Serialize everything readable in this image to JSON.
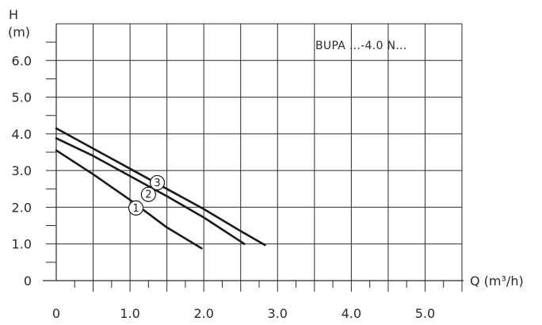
{
  "chart_data": {
    "type": "line",
    "annotation": "BUPA ...-4.0 N...",
    "y_label_top": "H",
    "y_label_unit": "(m)",
    "x_label": "Q (m³/h)",
    "xlim": [
      0,
      5.5
    ],
    "ylim": [
      0,
      7.0
    ],
    "x_ticks": [
      "0",
      "1.0",
      "2.0",
      "3.0",
      "4.0",
      "5.0"
    ],
    "x_tick_values": [
      0,
      1.0,
      2.0,
      3.0,
      4.0,
      5.0
    ],
    "y_ticks": [
      "0",
      "1.0",
      "2.0",
      "3.0",
      "4.0",
      "5.0",
      "6.0"
    ],
    "y_tick_values": [
      0,
      1.0,
      2.0,
      3.0,
      4.0,
      5.0,
      6.0
    ],
    "grid": true,
    "series": [
      {
        "name": "1",
        "x": [
          0,
          0.5,
          1.0,
          1.5,
          1.97
        ],
        "y": [
          3.55,
          2.9,
          2.2,
          1.45,
          0.88
        ],
        "label_at": [
          1.08,
          1.98
        ]
      },
      {
        "name": "2",
        "x": [
          0,
          0.5,
          1.0,
          1.5,
          2.0,
          2.55
        ],
        "y": [
          3.88,
          3.4,
          2.85,
          2.3,
          1.72,
          1.0
        ],
        "label_at": [
          1.25,
          2.35
        ]
      },
      {
        "name": "3",
        "x": [
          0,
          0.5,
          1.0,
          1.5,
          2.0,
          2.5,
          2.83
        ],
        "y": [
          4.15,
          3.6,
          3.05,
          2.5,
          1.95,
          1.35,
          0.97
        ],
        "label_at": [
          1.37,
          2.67
        ]
      }
    ]
  }
}
